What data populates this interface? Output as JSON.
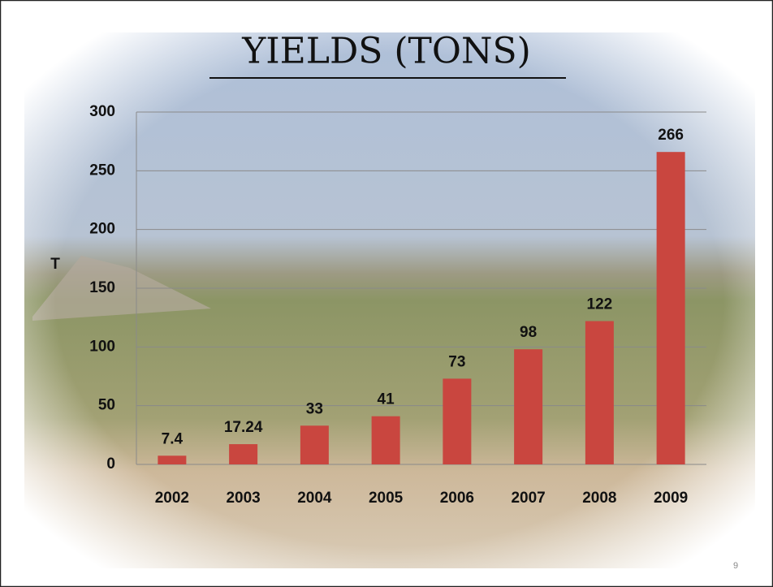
{
  "chart_data": {
    "type": "bar",
    "title": "YIELDS (TONS)",
    "y_label": "T",
    "categories": [
      "2002",
      "2003",
      "2004",
      "2005",
      "2006",
      "2007",
      "2008",
      "2009"
    ],
    "values": [
      7.4,
      17.24,
      33,
      41,
      73,
      98,
      122,
      266
    ],
    "color": "#c9463f",
    "ylim": [
      0,
      300
    ],
    "yticks": [
      0,
      50,
      100,
      150,
      200,
      250,
      300
    ],
    "grid": true,
    "page_number": "9"
  }
}
